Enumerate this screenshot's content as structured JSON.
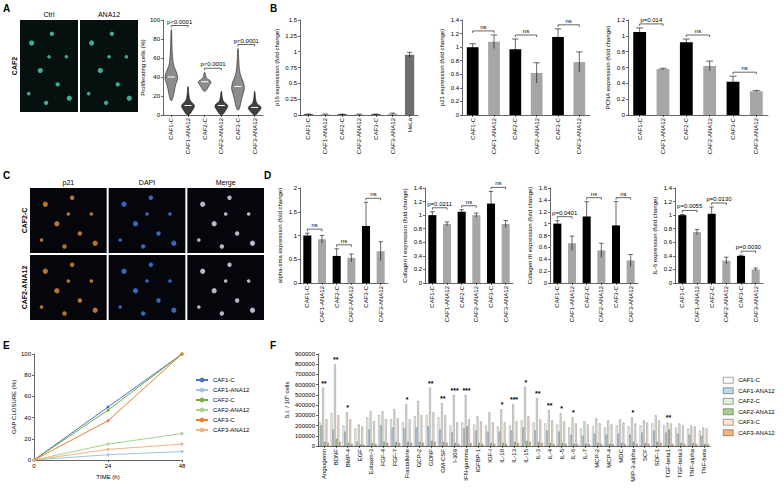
{
  "images": [
    {
      "panel": "A",
      "row_labels": [
        "CAF2"
      ],
      "column_labels": [
        "Ctrl",
        "ANA12"
      ]
    },
    {
      "panel": "C",
      "row_labels": [
        "CAF2-C",
        "CAF2-ANA12"
      ],
      "column_labels": [
        "p21",
        "DAPI",
        "Merge"
      ]
    }
  ],
  "chart_data": [
    {
      "panel": "A",
      "type": "violin",
      "categories": [
        "CAF1-C",
        "CAF1-ANA12",
        "CAF2-C",
        "CAF2-ANA12",
        "CAF3-C",
        "CAF3-ANA12"
      ],
      "values": [
        [
          15,
          32,
          40,
          55,
          90
        ],
        [
          0,
          5,
          10,
          16,
          30
        ],
        [
          25,
          31,
          35,
          39,
          45
        ],
        [
          0,
          5,
          10,
          15,
          25
        ],
        [
          5,
          20,
          30,
          45,
          70
        ],
        [
          0,
          4,
          8,
          13,
          25
        ]
      ],
      "colors": [
        "#8c8c8c",
        "#404040",
        "#8c8c8c",
        "#404040",
        "#8c8c8c",
        "#404040"
      ],
      "ylabel": "Proliferating cells (%)",
      "ylim": [
        0,
        100
      ],
      "yticks": [
        0,
        20,
        40,
        60,
        80,
        100
      ],
      "grid": false,
      "comparisons": [
        {
          "groups": [
            "CAF1-C",
            "CAF1-ANA12"
          ],
          "label": "p<0.0001"
        },
        {
          "groups": [
            "CAF2-C",
            "CAF2-ANA12"
          ],
          "label": "p<0.0001"
        },
        {
          "groups": [
            "CAF3-C",
            "CAF3-ANA12"
          ],
          "label": "p<0.0001"
        }
      ]
    },
    {
      "panel": "B",
      "type": "bar",
      "categories": [
        "CAF1-C",
        "CAF1-ANA12",
        "CAF2-C",
        "CAF2-ANA12",
        "CAF3-C",
        "CAF3-ANA12",
        "HeLa"
      ],
      "values": [
        0.01,
        0.01,
        0.01,
        0.01,
        0.01,
        0.02,
        0.95
      ],
      "errors": [
        0.005,
        0.005,
        0.005,
        0.005,
        0.005,
        0.01,
        0.04
      ],
      "colors": [
        "#000000",
        "#a6a6a6",
        "#000000",
        "#a6a6a6",
        "#000000",
        "#a6a6a6",
        "#6e6e6e"
      ],
      "ylabel": "p16 expression (fold change)",
      "ylim": [
        0,
        1.5
      ],
      "yticks": [
        0,
        0.25,
        0.5,
        0.75,
        1,
        1.25,
        1.5
      ],
      "grid": false,
      "comparisons": []
    },
    {
      "panel": "B",
      "type": "bar",
      "categories": [
        "CAF1-C",
        "CAF1-ANA12",
        "CAF2-C",
        "CAF2-ANA12",
        "CAF3-C",
        "CAF3-ANA12"
      ],
      "values": [
        1.0,
        1.08,
        0.97,
        0.62,
        1.15,
        0.78
      ],
      "errors": [
        0.05,
        0.1,
        0.15,
        0.15,
        0.12,
        0.15
      ],
      "colors": [
        "#000000",
        "#a6a6a6",
        "#000000",
        "#a6a6a6",
        "#000000",
        "#a6a6a6"
      ],
      "ylabel": "p21 expression (fold change)",
      "ylim": [
        0,
        1.4
      ],
      "yticks": [
        0,
        0.2,
        0.4,
        0.6,
        0.8,
        1,
        1.2,
        1.4
      ],
      "grid": false,
      "comparisons": [
        {
          "groups": [
            "CAF1-C",
            "CAF1-ANA12"
          ],
          "label": "ns"
        },
        {
          "groups": [
            "CAF2-C",
            "CAF2-ANA12"
          ],
          "label": "ns"
        },
        {
          "groups": [
            "CAF3-C",
            "CAF3-ANA12"
          ],
          "label": "ns"
        }
      ]
    },
    {
      "panel": "B",
      "type": "bar",
      "categories": [
        "CAF1-C",
        "CAF1-ANA12",
        "CAF2-C",
        "CAF2-ANA12",
        "CAF3-C",
        "CAF3-ANA12"
      ],
      "values": [
        1.05,
        0.58,
        0.92,
        0.62,
        0.42,
        0.3
      ],
      "errors": [
        0.05,
        0.01,
        0.04,
        0.06,
        0.07,
        0.01
      ],
      "colors": [
        "#000000",
        "#a6a6a6",
        "#000000",
        "#a6a6a6",
        "#000000",
        "#a6a6a6"
      ],
      "ylabel": "PCNA expression (fold change)",
      "ylim": [
        0,
        1.2
      ],
      "yticks": [
        0,
        0.2,
        0.4,
        0.6,
        0.8,
        1,
        1.2
      ],
      "grid": false,
      "comparisons": [
        {
          "groups": [
            "CAF1-C",
            "CAF1-ANA12"
          ],
          "label": "p=0.014"
        },
        {
          "groups": [
            "CAF2-C",
            "CAF2-ANA12"
          ],
          "label": "ns"
        },
        {
          "groups": [
            "CAF3-C",
            "CAF3-ANA12"
          ],
          "label": "ns"
        }
      ]
    },
    {
      "panel": "D",
      "type": "bar",
      "categories": [
        "CAF1-C",
        "CAF1-ANA12",
        "CAF2-C",
        "CAF2-ANA12",
        "CAF3-C",
        "CAF3-ANA12"
      ],
      "values": [
        1.0,
        0.92,
        0.57,
        0.53,
        1.2,
        0.67
      ],
      "errors": [
        0.05,
        0.08,
        0.15,
        0.08,
        0.5,
        0.2
      ],
      "colors": [
        "#000000",
        "#a6a6a6",
        "#000000",
        "#a6a6a6",
        "#000000",
        "#a6a6a6"
      ],
      "ylabel": "alpha-sma expression (fold change)",
      "ylim": [
        0,
        2
      ],
      "yticks": [
        0,
        0.5,
        1,
        1.5,
        2
      ],
      "grid": false,
      "comparisons": [
        {
          "groups": [
            "CAF1-C",
            "CAF1-ANA12"
          ],
          "label": "ns"
        },
        {
          "groups": [
            "CAF2-C",
            "CAF2-ANA12"
          ],
          "label": "ns"
        },
        {
          "groups": [
            "CAF3-C",
            "CAF3-ANA12"
          ],
          "label": "ns"
        }
      ]
    },
    {
      "panel": "D",
      "type": "bar",
      "categories": [
        "CAF1-C",
        "CAF1-ANA12",
        "CAF2-C",
        "CAF2-ANA12",
        "CAF3-C",
        "CAF3-ANA12"
      ],
      "values": [
        1.0,
        0.87,
        1.05,
        1.0,
        1.17,
        0.87
      ],
      "errors": [
        0.05,
        0.03,
        0.03,
        0.03,
        0.18,
        0.05
      ],
      "colors": [
        "#000000",
        "#a6a6a6",
        "#000000",
        "#a6a6a6",
        "#000000",
        "#a6a6a6"
      ],
      "ylabel": "Collagen I expression (fold change)",
      "ylim": [
        0,
        1.4
      ],
      "yticks": [
        0,
        0.2,
        0.4,
        0.6,
        0.8,
        1,
        1.2,
        1.4
      ],
      "grid": false,
      "comparisons": [
        {
          "groups": [
            "CAF1-C",
            "CAF1-ANA12"
          ],
          "label": "p=0.0211"
        },
        {
          "groups": [
            "CAF2-C",
            "CAF2-ANA12"
          ],
          "label": "ns"
        },
        {
          "groups": [
            "CAF3-C",
            "CAF3-ANA12"
          ],
          "label": "ns"
        }
      ]
    },
    {
      "panel": "D",
      "type": "bar",
      "categories": [
        "CAF1-C",
        "CAF1-ANA12",
        "CAF2-C",
        "CAF2-ANA12",
        "CAF3-C",
        "CAF3-ANA12"
      ],
      "values": [
        1.0,
        0.67,
        1.12,
        0.55,
        0.97,
        0.38
      ],
      "errors": [
        0.05,
        0.12,
        0.25,
        0.12,
        0.4,
        0.1
      ],
      "colors": [
        "#000000",
        "#a6a6a6",
        "#000000",
        "#a6a6a6",
        "#000000",
        "#a6a6a6"
      ],
      "ylabel": "Collagen III expression (fold change)",
      "ylim": [
        0,
        1.6
      ],
      "yticks": [
        0,
        0.2,
        0.4,
        0.6,
        0.8,
        1,
        1.2,
        1.4,
        1.6
      ],
      "grid": false,
      "comparisons": [
        {
          "groups": [
            "CAF1-C",
            "CAF1-ANA12"
          ],
          "label": "p=0.0401"
        },
        {
          "groups": [
            "CAF2-C",
            "CAF2-ANA12"
          ],
          "label": "ns"
        },
        {
          "groups": [
            "CAF3-C",
            "CAF3-ANA12"
          ],
          "label": "ns"
        }
      ]
    },
    {
      "panel": "D",
      "type": "bar",
      "categories": [
        "CAF1-C",
        "CAF1-ANA12",
        "CAF2-C",
        "CAF2-ANA12",
        "CAF3-C",
        "CAF3-ANA12"
      ],
      "values": [
        1.0,
        0.75,
        1.02,
        0.33,
        0.4,
        0.2
      ],
      "errors": [
        0.01,
        0.04,
        0.1,
        0.05,
        0.01,
        0.02
      ],
      "colors": [
        "#000000",
        "#a6a6a6",
        "#000000",
        "#a6a6a6",
        "#000000",
        "#a6a6a6"
      ],
      "ylabel": "IL-6 expression (fold change)",
      "ylim": [
        0,
        1.4
      ],
      "yticks": [
        0,
        0.2,
        0.4,
        0.6,
        0.8,
        1,
        1.2,
        1.4
      ],
      "grid": false,
      "comparisons": [
        {
          "groups": [
            "CAF1-C",
            "CAF1-ANA12"
          ],
          "label": "p=0.0055"
        },
        {
          "groups": [
            "CAF2-C",
            "CAF2-ANA12"
          ],
          "label": "p=0.0130"
        },
        {
          "groups": [
            "CAF3-C",
            "CAF3-ANA12"
          ],
          "label": "p=0.0030"
        }
      ]
    },
    {
      "panel": "E",
      "type": "line",
      "x": [
        0,
        24,
        48
      ],
      "xlabel": "TIME (h)",
      "ylabel": "GAP CLOSURE (%)",
      "xlim": [
        0,
        48
      ],
      "xticks": [
        0,
        24,
        48
      ],
      "ylim": [
        0,
        100
      ],
      "yticks": [
        0,
        20,
        40,
        60,
        80,
        100
      ],
      "grid": false,
      "legend": "right",
      "marker": "circle",
      "line_style": "solid",
      "series": [
        {
          "name": "CAF1-C",
          "color": "#4472c4",
          "values": [
            0,
            50,
            100
          ]
        },
        {
          "name": "CAF1-ANA12",
          "color": "#9dc3e6",
          "values": [
            0,
            5,
            8
          ]
        },
        {
          "name": "CAF2-C",
          "color": "#70ad47",
          "values": [
            0,
            47,
            100
          ]
        },
        {
          "name": "CAF2-ANA12",
          "color": "#a9d18e",
          "values": [
            0,
            15,
            25
          ]
        },
        {
          "name": "CAF3-C",
          "color": "#ed7d31",
          "values": [
            0,
            37,
            100
          ]
        },
        {
          "name": "CAF3-ANA12",
          "color": "#f4b183",
          "values": [
            0,
            10,
            15
          ]
        }
      ]
    },
    {
      "panel": "F",
      "type": "bar",
      "categories": [
        "Angiogenin",
        "BDNF",
        "BMP-4",
        "EGF",
        "Eotaxin-3",
        "FGF-4",
        "FGF-7",
        "Fractalkine",
        "GCP-2",
        "GDNF",
        "GM-CSF",
        "I-309",
        "IFN-gamma",
        "IGFBP-1",
        "IGF-I",
        "IL-10",
        "IL-13",
        "IL-15",
        "IL-3",
        "IL-4",
        "IL-5",
        "IL-6",
        "IL-7",
        "MCP-2",
        "MCP-4",
        "MDC",
        "MIP-3-alpha",
        "SCF",
        "SDF-1",
        "TGF-beta1",
        "TGF-beta3",
        "TNF-alpha",
        "TNF-beta"
      ],
      "ylabel": "S.I. / 10⁶ cells",
      "ylim": [
        0,
        900000
      ],
      "yticks": [
        0,
        100000,
        200000,
        300000,
        400000,
        500000,
        600000,
        700000,
        800000,
        900000
      ],
      "grid": false,
      "legend": "right",
      "annotations": [
        "**",
        "**",
        "*",
        null,
        null,
        null,
        null,
        "*",
        null,
        "**",
        "**",
        "***",
        "***",
        null,
        null,
        "*",
        "***",
        "*",
        "**",
        "**",
        "*",
        "*",
        null,
        null,
        null,
        null,
        "*",
        null,
        null,
        "**",
        null,
        null,
        null
      ],
      "series": [
        {
          "name": "CAF1-C",
          "color": "#ffffff",
          "values": [
            230000,
            320000,
            200000,
            170000,
            280000,
            300000,
            260000,
            230000,
            290000,
            300000,
            280000,
            200000,
            230000,
            210000,
            200000,
            190000,
            200000,
            250000,
            230000,
            220000,
            210000,
            180000,
            170000,
            190000,
            180000,
            200000,
            190000,
            200000,
            220000,
            200000,
            180000,
            170000,
            150000
          ]
        },
        {
          "name": "CAF1-ANA12",
          "color": "#bdd7ee",
          "values": [
            200000,
            160000,
            140000,
            40000,
            160000,
            200000,
            180000,
            170000,
            180000,
            190000,
            160000,
            130000,
            170000,
            150000,
            140000,
            140000,
            150000,
            180000,
            150000,
            150000,
            140000,
            110000,
            100000,
            120000,
            110000,
            120000,
            110000,
            130000,
            150000,
            130000,
            120000,
            110000,
            100000
          ]
        },
        {
          "name": "CAF2-C",
          "color": "#e2efd9",
          "values": [
            570000,
            800000,
            330000,
            210000,
            340000,
            340000,
            360000,
            410000,
            440000,
            570000,
            420000,
            500000,
            500000,
            290000,
            330000,
            360000,
            410000,
            580000,
            470000,
            350000,
            320000,
            280000,
            240000,
            270000,
            250000,
            260000,
            280000,
            250000,
            300000,
            230000,
            220000,
            200000,
            180000
          ]
        },
        {
          "name": "CAF2-ANA12",
          "color": "#a9d18e",
          "values": [
            40000,
            70000,
            30000,
            15000,
            30000,
            40000,
            40000,
            40000,
            40000,
            50000,
            40000,
            30000,
            190000,
            30000,
            30000,
            30000,
            40000,
            50000,
            40000,
            30000,
            30000,
            20000,
            20000,
            30000,
            20000,
            30000,
            40000,
            30000,
            40000,
            160000,
            30000,
            30000,
            20000
          ]
        },
        {
          "name": "CAF3-C",
          "color": "#fbe5d6",
          "values": [
            260000,
            300000,
            260000,
            190000,
            240000,
            260000,
            270000,
            260000,
            300000,
            330000,
            300000,
            230000,
            260000,
            240000,
            230000,
            230000,
            240000,
            290000,
            260000,
            250000,
            240000,
            220000,
            210000,
            220000,
            210000,
            230000,
            220000,
            230000,
            250000,
            220000,
            200000,
            190000,
            170000
          ]
        },
        {
          "name": "CAF3-ANA12",
          "color": "#f4b183",
          "values": [
            30000,
            40000,
            20000,
            10000,
            20000,
            30000,
            30000,
            30000,
            30000,
            40000,
            30000,
            20000,
            30000,
            20000,
            20000,
            20000,
            30000,
            40000,
            30000,
            20000,
            20000,
            15000,
            15000,
            20000,
            15000,
            20000,
            20000,
            20000,
            30000,
            20000,
            20000,
            20000,
            15000
          ]
        }
      ]
    }
  ]
}
